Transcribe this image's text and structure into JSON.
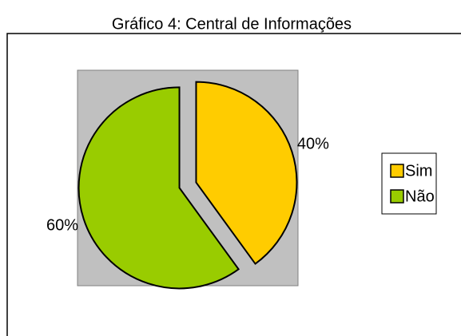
{
  "chart_data": {
    "type": "pie",
    "title": "Gráfico 4: Central de Informações",
    "categories": [
      "Sim",
      "Não"
    ],
    "values": [
      40,
      60
    ],
    "value_labels": [
      "40%",
      "60%"
    ],
    "colors": [
      "#ffcc00",
      "#99cc00"
    ],
    "legend": "right"
  }
}
